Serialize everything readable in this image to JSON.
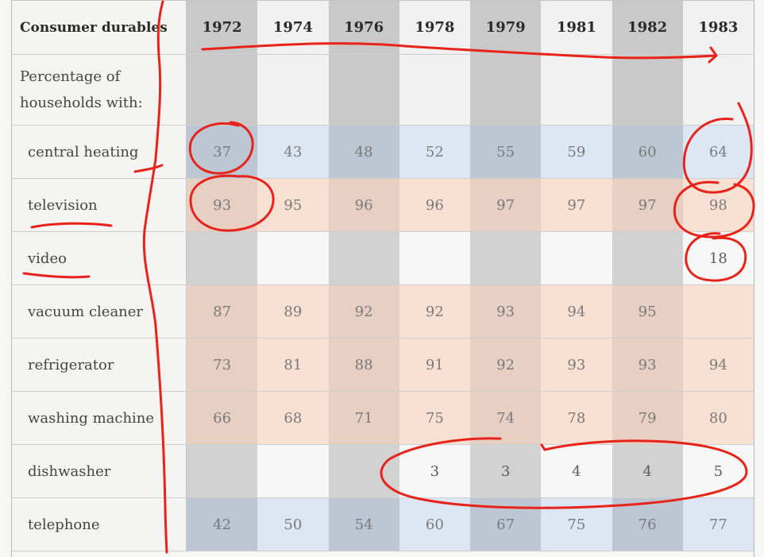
{
  "table": {
    "corner_header": "Consumer durables",
    "subheader": "Percentage of\nhouseholds with:",
    "years": [
      "1972",
      "1974",
      "1976",
      "1978",
      "1979",
      "1981",
      "1982",
      "1983"
    ],
    "rows": [
      {
        "label": "central heating",
        "tint": "blue",
        "values": [
          "37",
          "43",
          "48",
          "52",
          "55",
          "59",
          "60",
          "64"
        ]
      },
      {
        "label": "television",
        "tint": "peach",
        "values": [
          "93",
          "95",
          "96",
          "96",
          "97",
          "97",
          "97",
          "98"
        ]
      },
      {
        "label": "video",
        "tint": "none",
        "values": [
          "",
          "",
          "",
          "",
          "",
          "",
          "",
          "18"
        ]
      },
      {
        "label": "vacuum cleaner",
        "tint": "peach",
        "values": [
          "87",
          "89",
          "92",
          "92",
          "93",
          "94",
          "95",
          ""
        ]
      },
      {
        "label": "refrigerator",
        "tint": "peach",
        "values": [
          "73",
          "81",
          "88",
          "91",
          "92",
          "93",
          "93",
          "94"
        ]
      },
      {
        "label": "washing machine",
        "tint": "peach",
        "values": [
          "66",
          "68",
          "71",
          "75",
          "74",
          "78",
          "79",
          "80"
        ]
      },
      {
        "label": "dishwasher",
        "tint": "none",
        "values": [
          "",
          "",
          "",
          "3",
          "3",
          "4",
          "4",
          "5"
        ]
      },
      {
        "label": "telephone",
        "tint": "blue",
        "values": [
          "42",
          "50",
          "54",
          "60",
          "67",
          "75",
          "76",
          "77"
        ]
      }
    ]
  },
  "annotations": {
    "color": "#e8231a",
    "marks": [
      "circle-1972-central-heating",
      "circle-1983-central-heating",
      "circle-1972-television",
      "circle-1983-television",
      "circle-1983-video",
      "ellipse-dishwasher-1978-1983",
      "arrow-years",
      "underline-television",
      "underline-video",
      "vertical-line"
    ]
  }
}
